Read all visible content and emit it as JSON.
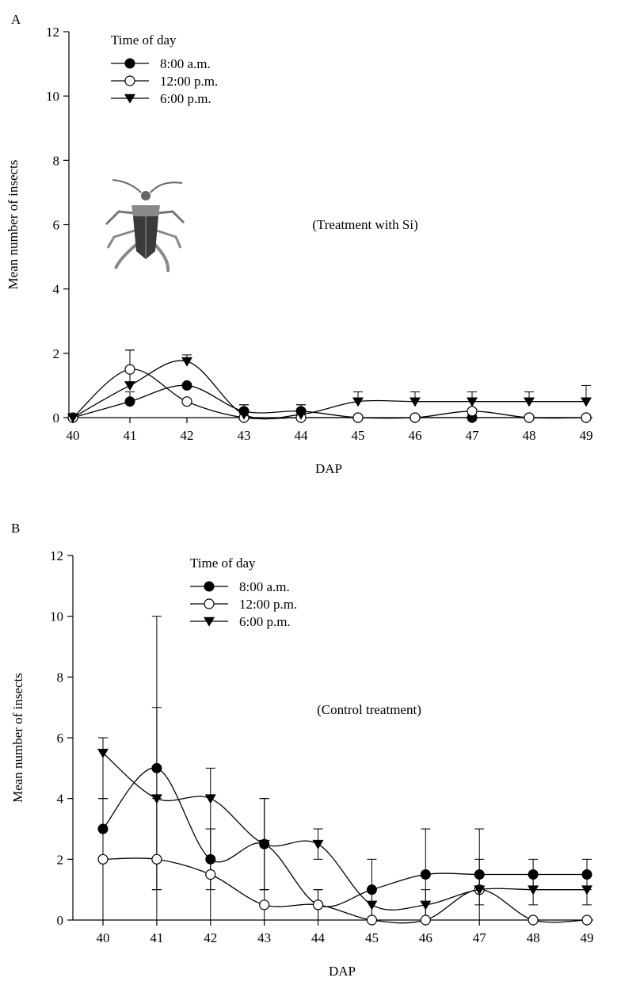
{
  "chart_data": [
    {
      "panel_label": "A",
      "type": "line",
      "annotation": "(Treatment with Si)",
      "xlabel": "DAP",
      "ylabel": "Mean number of insects",
      "x": [
        40,
        41,
        42,
        43,
        44,
        45,
        46,
        47,
        48,
        49
      ],
      "x_ticks": [
        "40",
        "41",
        "42",
        "43",
        "44",
        "45",
        "46",
        "47",
        "48",
        "49"
      ],
      "ylim": [
        0,
        12
      ],
      "y_ticks": [
        "0",
        "2",
        "4",
        "6",
        "8",
        "10",
        "12"
      ],
      "legend_title": "Time of day",
      "legend_placement": "top-left",
      "has_insect_image": true,
      "series": [
        {
          "name": "8:00 a.m.",
          "marker": "filled-circle",
          "values": [
            0,
            0.5,
            1.0,
            0.2,
            0.2,
            0,
            0,
            0,
            0,
            0
          ],
          "error_up": [
            0,
            0.3,
            0.0,
            0.2,
            0.2,
            0,
            0,
            0,
            0,
            0
          ]
        },
        {
          "name": "12:00 p.m.",
          "marker": "open-circle",
          "values": [
            0,
            1.5,
            0.5,
            0,
            0,
            0,
            0,
            0.2,
            0,
            0
          ],
          "error_up": [
            0,
            0.6,
            0,
            0,
            0,
            0,
            0,
            0,
            0,
            0
          ]
        },
        {
          "name": "6:00 p.m.",
          "marker": "filled-triangle-down",
          "values": [
            0,
            1.0,
            1.75,
            0.1,
            0.1,
            0.5,
            0.5,
            0.5,
            0.5,
            0.5
          ],
          "error_up": [
            0,
            1.1,
            0.2,
            0.3,
            0.3,
            0.3,
            0.3,
            0.3,
            0.3,
            0.5
          ]
        }
      ]
    },
    {
      "panel_label": "B",
      "type": "line",
      "annotation": "(Control treatment)",
      "xlabel": "DAP",
      "ylabel": "Mean number of insects",
      "x": [
        40,
        41,
        42,
        43,
        44,
        45,
        46,
        47,
        48,
        49
      ],
      "x_ticks": [
        "40",
        "41",
        "42",
        "43",
        "44",
        "45",
        "46",
        "47",
        "48",
        "49"
      ],
      "ylim": [
        0,
        12
      ],
      "y_ticks": [
        "0",
        "2",
        "4",
        "6",
        "8",
        "10",
        "12"
      ],
      "legend_title": "Time of day",
      "legend_placement": "top-center",
      "has_insect_image": false,
      "series": [
        {
          "name": "8:00 a.m.",
          "marker": "filled-circle",
          "values": [
            3,
            5,
            2,
            2.5,
            0.5,
            1,
            1.5,
            1.5,
            1.5,
            1.5
          ],
          "error_up": [
            3,
            5,
            1,
            1.5,
            0.5,
            1,
            1.5,
            1.5,
            0.5,
            0.5
          ],
          "error_down": [
            3,
            4,
            1,
            1.5,
            0.5,
            1,
            1.5,
            0.5,
            0.5,
            0.5
          ]
        },
        {
          "name": "12:00 p.m.",
          "marker": "open-circle",
          "values": [
            2,
            2,
            1.5,
            0.5,
            0.5,
            0,
            0,
            1,
            0,
            0
          ],
          "error_up": [
            2,
            2,
            1.5,
            0.5,
            0.5,
            0,
            0,
            1,
            0,
            0
          ],
          "error_down": [
            2,
            2,
            1.5,
            0.5,
            0.5,
            0,
            0,
            1,
            0,
            0
          ]
        },
        {
          "name": "6:00 p.m.",
          "marker": "filled-triangle-down",
          "values": [
            5.5,
            4,
            4,
            2.5,
            2.5,
            0.5,
            0.5,
            1,
            1,
            1
          ],
          "error_up": [
            0.5,
            3,
            1,
            1.5,
            0.5,
            0.5,
            0.5,
            0.5,
            0.5,
            0.5
          ],
          "error_down": [
            1.5,
            3,
            1,
            1.5,
            0.5,
            0.5,
            0.5,
            0.5,
            0.5,
            0.5
          ]
        }
      ]
    }
  ]
}
